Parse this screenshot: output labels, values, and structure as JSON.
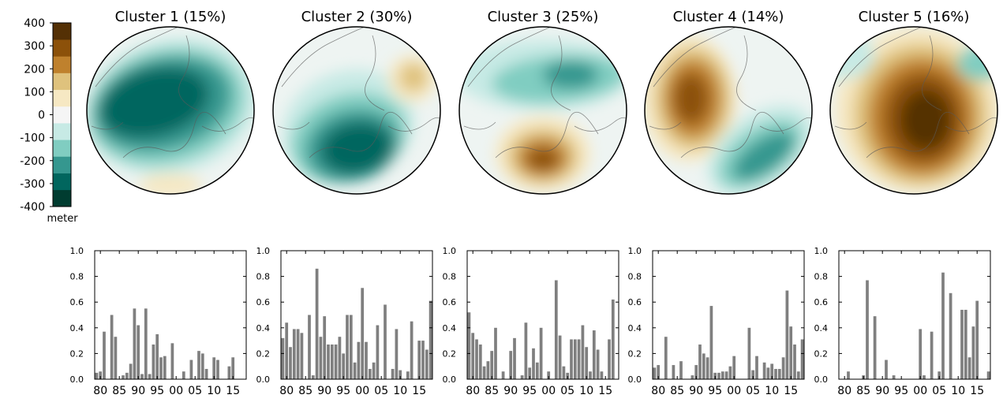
{
  "colorbar": {
    "ticks": [
      "400",
      "300",
      "200",
      "100",
      "0",
      "-100",
      "-200",
      "-300",
      "-400"
    ],
    "unit": "meter",
    "colors": [
      "#003c30",
      "#01665e",
      "#35978f",
      "#80cdc1",
      "#c7eae5",
      "#f5f5f5",
      "#f6e8c3",
      "#dfc27d",
      "#bf812d",
      "#8c510a",
      "#543005"
    ]
  },
  "map_colors": {
    "land_line": "#5a5a5a",
    "neg_strong": "#01665e",
    "neg_mid": "#35978f",
    "neg_light": "#80cdc1",
    "neg_faint": "#c7eae5",
    "neutral": "#eef4f2",
    "pos_faint": "#f6e8c3",
    "pos_light": "#dfc27d",
    "pos_mid": "#bf812d",
    "pos_strong": "#8c510a",
    "pos_dark": "#543005"
  },
  "bar_color": "#7f7f7f",
  "chart_data": [
    {
      "type": "bar",
      "title": "Cluster 1  (15%)",
      "x_tick_labels": [
        "80",
        "85",
        "90",
        "95",
        "00",
        "05",
        "10",
        "15"
      ],
      "y_tick_labels": [
        "0.0",
        "0.2",
        "0.4",
        "0.6",
        "0.8",
        "1.0"
      ],
      "ylim": [
        0,
        1.0
      ],
      "x": [
        1979,
        1980,
        1981,
        1982,
        1983,
        1984,
        1985,
        1986,
        1987,
        1988,
        1989,
        1990,
        1991,
        1992,
        1993,
        1994,
        1995,
        1996,
        1997,
        1998,
        1999,
        2000,
        2001,
        2002,
        2003,
        2004,
        2005,
        2006,
        2007,
        2008,
        2009,
        2010,
        2011,
        2012,
        2013,
        2014,
        2015,
        2016,
        2017,
        2018
      ],
      "values": [
        0.05,
        0.06,
        0.37,
        0,
        0.5,
        0.33,
        0,
        0.03,
        0.05,
        0.12,
        0.55,
        0.42,
        0.04,
        0.55,
        0.04,
        0.27,
        0.35,
        0.17,
        0.18,
        0,
        0.28,
        0,
        0,
        0.06,
        0,
        0.15,
        0,
        0.22,
        0.2,
        0.08,
        0,
        0.17,
        0.15,
        0,
        0,
        0.1,
        0.17,
        0,
        0,
        0
      ]
    },
    {
      "type": "bar",
      "title": "Cluster 2  (30%)",
      "x_tick_labels": [
        "80",
        "85",
        "90",
        "95",
        "00",
        "05",
        "10",
        "15"
      ],
      "y_tick_labels": [
        "0.0",
        "0.2",
        "0.4",
        "0.6",
        "0.8",
        "1.0"
      ],
      "ylim": [
        0,
        1.0
      ],
      "x": [
        1979,
        1980,
        1981,
        1982,
        1983,
        1984,
        1985,
        1986,
        1987,
        1988,
        1989,
        1990,
        1991,
        1992,
        1993,
        1994,
        1995,
        1996,
        1997,
        1998,
        1999,
        2000,
        2001,
        2002,
        2003,
        2004,
        2005,
        2006,
        2007,
        2008,
        2009,
        2010,
        2011,
        2012,
        2013,
        2014,
        2015,
        2016,
        2017,
        2018
      ],
      "values": [
        0.32,
        0.44,
        0.25,
        0.39,
        0.39,
        0.36,
        0,
        0.5,
        0.03,
        0.86,
        0.33,
        0.49,
        0.27,
        0.27,
        0.27,
        0.33,
        0.2,
        0.5,
        0.5,
        0.13,
        0.29,
        0.71,
        0.29,
        0.08,
        0.13,
        0.42,
        0,
        0.58,
        0,
        0.08,
        0.39,
        0.07,
        0,
        0.06,
        0.45,
        0,
        0.3,
        0.3,
        0.23,
        0.61
      ]
    },
    {
      "type": "bar",
      "title": "Cluster 3  (25%)",
      "x_tick_labels": [
        "80",
        "85",
        "90",
        "95",
        "00",
        "05",
        "10",
        "15"
      ],
      "y_tick_labels": [
        "0.0",
        "0.2",
        "0.4",
        "0.6",
        "0.8",
        "1.0"
      ],
      "ylim": [
        0,
        1.0
      ],
      "x": [
        1979,
        1980,
        1981,
        1982,
        1983,
        1984,
        1985,
        1986,
        1987,
        1988,
        1989,
        1990,
        1991,
        1992,
        1993,
        1994,
        1995,
        1996,
        1997,
        1998,
        1999,
        2000,
        2001,
        2002,
        2003,
        2004,
        2005,
        2006,
        2007,
        2008,
        2009,
        2010,
        2011,
        2012,
        2013,
        2014,
        2015,
        2016,
        2017,
        2018
      ],
      "values": [
        0.52,
        0.36,
        0.31,
        0.27,
        0.1,
        0.14,
        0.22,
        0.4,
        0,
        0.06,
        0,
        0.22,
        0.32,
        0,
        0.03,
        0.44,
        0.09,
        0.24,
        0.13,
        0.4,
        0,
        0.06,
        0,
        0.77,
        0.34,
        0.1,
        0.05,
        0.31,
        0.31,
        0.31,
        0.42,
        0.25,
        0.06,
        0.38,
        0.23,
        0.06,
        0,
        0.31,
        0.62,
        0
      ]
    },
    {
      "type": "bar",
      "title": "Cluster 4  (14%)",
      "x_tick_labels": [
        "80",
        "85",
        "90",
        "95",
        "00",
        "05",
        "10",
        "15"
      ],
      "y_tick_labels": [
        "0.0",
        "0.2",
        "0.4",
        "0.6",
        "0.8",
        "1.0"
      ],
      "ylim": [
        0,
        1.0
      ],
      "x": [
        1979,
        1980,
        1981,
        1982,
        1983,
        1984,
        1985,
        1986,
        1987,
        1988,
        1989,
        1990,
        1991,
        1992,
        1993,
        1994,
        1995,
        1996,
        1997,
        1998,
        1999,
        2000,
        2001,
        2002,
        2003,
        2004,
        2005,
        2006,
        2007,
        2008,
        2009,
        2010,
        2011,
        2012,
        2013,
        2014,
        2015,
        2016,
        2017,
        2018
      ],
      "values": [
        0.09,
        0.11,
        0,
        0.33,
        0,
        0.11,
        0,
        0.14,
        0,
        0,
        0.03,
        0.11,
        0.27,
        0.2,
        0.17,
        0.57,
        0.05,
        0.05,
        0.06,
        0.06,
        0.1,
        0.18,
        0,
        0,
        0,
        0.4,
        0.07,
        0.18,
        0,
        0.13,
        0.09,
        0.12,
        0.08,
        0.08,
        0.17,
        0.69,
        0.41,
        0.27,
        0.06,
        0.31
      ]
    },
    {
      "type": "bar",
      "title": "Cluster 5  (16%)",
      "x_tick_labels": [
        "80",
        "85",
        "90",
        "95",
        "00",
        "05",
        "10",
        "15"
      ],
      "y_tick_labels": [
        "0.0",
        "0.2",
        "0.4",
        "0.6",
        "0.8",
        "1.0"
      ],
      "ylim": [
        0,
        1.0
      ],
      "x": [
        1979,
        1980,
        1981,
        1982,
        1983,
        1984,
        1985,
        1986,
        1987,
        1988,
        1989,
        1990,
        1991,
        1992,
        1993,
        1994,
        1995,
        1996,
        1997,
        1998,
        1999,
        2000,
        2001,
        2002,
        2003,
        2004,
        2005,
        2006,
        2007,
        2008,
        2009,
        2010,
        2011,
        2012,
        2013,
        2014,
        2015,
        2016,
        2017,
        2018
      ],
      "values": [
        0,
        0,
        0.06,
        0,
        0,
        0,
        0.03,
        0.77,
        0,
        0.49,
        0,
        0,
        0.15,
        0,
        0.03,
        0,
        0,
        0,
        0,
        0,
        0,
        0.39,
        0.03,
        0,
        0.37,
        0,
        0.06,
        0.83,
        0,
        0.67,
        0,
        0,
        0.54,
        0.54,
        0.17,
        0.41,
        0.61,
        0,
        0,
        0.06
      ]
    }
  ]
}
